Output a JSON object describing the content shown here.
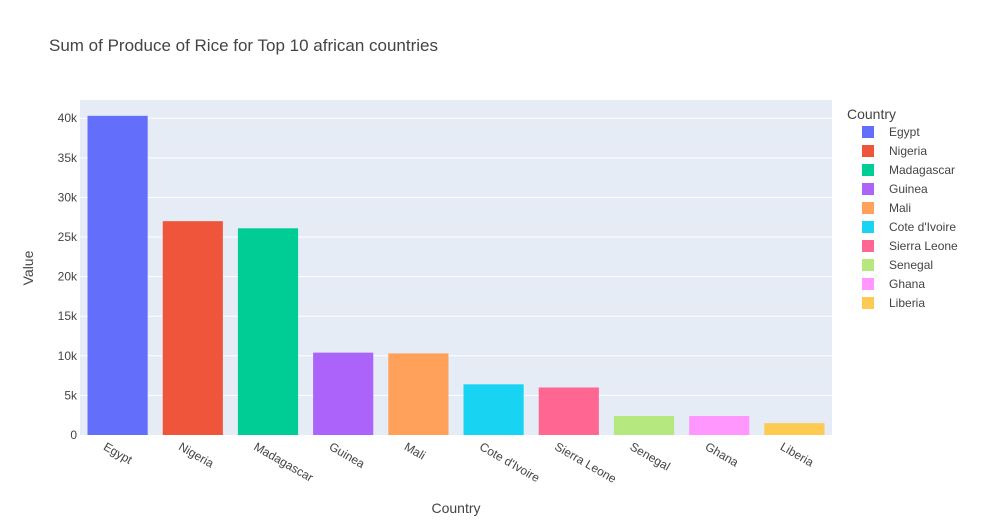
{
  "chart_data": {
    "type": "bar",
    "title": "Sum of Produce of Rice for Top 10 african countries",
    "xlabel": "Country",
    "ylabel": "Value",
    "legend_title": "Country",
    "legend_position": "right",
    "grid": true,
    "ylim": [
      0,
      42300
    ],
    "y_ticks": [
      0,
      5000,
      10000,
      15000,
      20000,
      25000,
      30000,
      35000,
      40000
    ],
    "y_tick_labels": [
      "0",
      "5k",
      "10k",
      "15k",
      "20k",
      "25k",
      "30k",
      "35k",
      "40k"
    ],
    "categories": [
      "Egypt",
      "Nigeria",
      "Madagascar",
      "Guinea",
      "Mali",
      "Cote d'Ivoire",
      "Sierra Leone",
      "Senegal",
      "Ghana",
      "Liberia"
    ],
    "values": [
      40300,
      27000,
      26100,
      10400,
      10300,
      6400,
      6000,
      2400,
      2400,
      1500
    ],
    "colors": [
      "#636efa",
      "#EF553B",
      "#00cc96",
      "#ab63fa",
      "#FFA15A",
      "#19d3f3",
      "#FF6692",
      "#B6E880",
      "#FF97FF",
      "#FECB52"
    ]
  }
}
